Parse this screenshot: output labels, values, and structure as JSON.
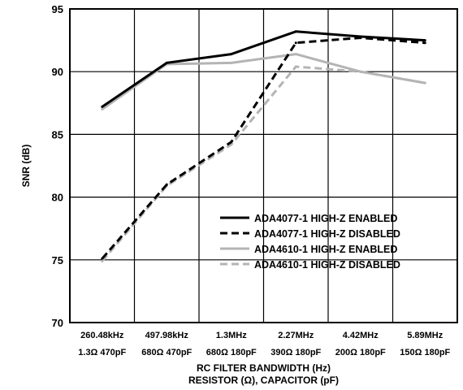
{
  "chart_data": {
    "type": "line",
    "xlabel": "RC FILTER BANDWIDTH (Hz)",
    "xlabel2": "RESISTOR (Ω), CAPACITOR (pF)",
    "ylabel": "SNR (dB)",
    "ylim": [
      70,
      95
    ],
    "yticks": [
      70,
      75,
      80,
      85,
      90,
      95
    ],
    "grid": true,
    "legend_position": "lower-right",
    "categories": [
      {
        "line1": "260.48kHz",
        "line2": "1.3Ω 470pF"
      },
      {
        "line1": "497.98kHz",
        "line2": "680Ω 470pF"
      },
      {
        "line1": "1.3MHz",
        "line2": "680Ω 180pF"
      },
      {
        "line1": "2.27MHz",
        "line2": "390Ω 180pF"
      },
      {
        "line1": "4.42MHz",
        "line2": "200Ω 180pF"
      },
      {
        "line1": "5.89MHz",
        "line2": "150Ω 180pF"
      }
    ],
    "series": [
      {
        "name": "ADA4077-1 HIGH-Z ENABLED",
        "color": "#000000",
        "dash": "solid",
        "values": [
          87.2,
          90.7,
          91.4,
          93.2,
          92.8,
          92.5
        ]
      },
      {
        "name": "ADA4077-1 HIGH-Z DISABLED",
        "color": "#000000",
        "dash": "dashed",
        "values": [
          75.1,
          81.0,
          84.4,
          92.3,
          92.7,
          92.3
        ]
      },
      {
        "name": "ADA4610-1 HIGH-Z ENABLED",
        "color": "#b4b4b4",
        "dash": "solid",
        "values": [
          87.0,
          90.6,
          90.7,
          91.4,
          90.0,
          89.1
        ]
      },
      {
        "name": "ADA4610-1 HIGH-Z DISABLED",
        "color": "#b4b4b4",
        "dash": "dashed",
        "values": [
          74.9,
          80.9,
          84.2,
          90.4,
          90.0,
          89.1
        ]
      }
    ]
  }
}
